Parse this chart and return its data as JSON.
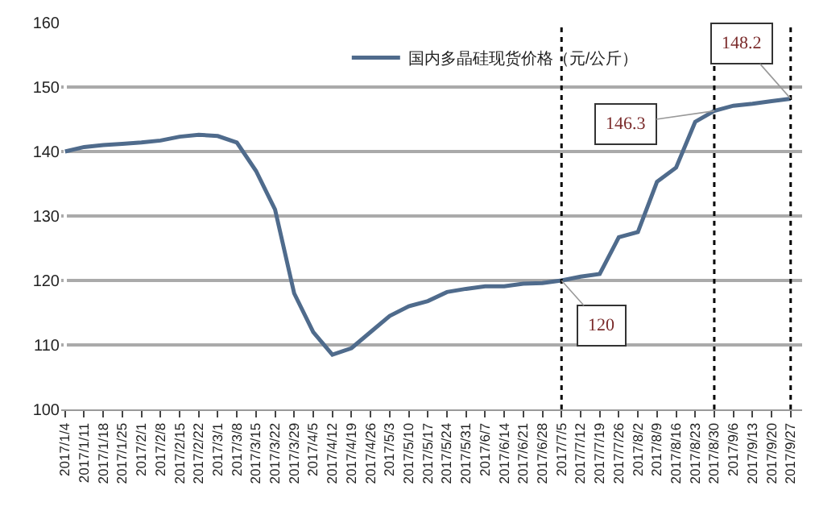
{
  "chart_data": {
    "type": "line",
    "categories": [
      "2017/1/4",
      "2017/1/11",
      "2017/1/18",
      "2017/1/25",
      "2017/2/1",
      "2017/2/8",
      "2017/2/15",
      "2017/2/22",
      "2017/3/1",
      "2017/3/8",
      "2017/3/15",
      "2017/3/22",
      "2017/3/29",
      "2017/4/5",
      "2017/4/12",
      "2017/4/19",
      "2017/4/26",
      "2017/5/3",
      "2017/5/10",
      "2017/5/17",
      "2017/5/24",
      "2017/5/31",
      "2017/6/7",
      "2017/6/14",
      "2017/6/21",
      "2017/6/28",
      "2017/7/5",
      "2017/7/12",
      "2017/7/19",
      "2017/7/26",
      "2017/8/2",
      "2017/8/9",
      "2017/8/16",
      "2017/8/23",
      "2017/8/30",
      "2017/9/6",
      "2017/9/13",
      "2017/9/20",
      "2017/9/27"
    ],
    "series": [
      {
        "name": "国内多晶硅现货价格（元/公斤）",
        "color": "#4f6b8c",
        "values": [
          140,
          140.7,
          141,
          141.2,
          141.4,
          141.7,
          142.3,
          142.6,
          142.4,
          141.4,
          137,
          131,
          118,
          112,
          108.5,
          109.5,
          112,
          114.5,
          116,
          116.8,
          118.2,
          118.7,
          119.1,
          119.1,
          119.5,
          119.6,
          120,
          120.6,
          121,
          126.7,
          127.5,
          135.3,
          137.5,
          144.6,
          146.3,
          147.1,
          147.4,
          147.8,
          148.2
        ]
      }
    ],
    "ylim": [
      100,
      160
    ],
    "yticks": [
      100,
      110,
      120,
      130,
      140,
      150,
      160
    ],
    "grid": "y",
    "legend": "top right",
    "marker": "none",
    "line_style": "solid",
    "ref_lines": [
      {
        "axis": "x",
        "value": "2017/7/5",
        "line_style": "dotted",
        "color": "#000000"
      },
      {
        "axis": "x",
        "value": "2017/8/30",
        "line_style": "dotted",
        "color": "#000000"
      },
      {
        "axis": "x",
        "value": "2017/9/27",
        "line_style": "dotted",
        "color": "#000000"
      }
    ],
    "annotations": [
      {
        "text": "120",
        "x": "2017/7/5",
        "y": 120
      },
      {
        "text": "146.3",
        "x": "2017/8/30",
        "y": 146.3
      },
      {
        "text": "148.2",
        "x": "2017/9/27",
        "y": 148.2
      }
    ]
  }
}
